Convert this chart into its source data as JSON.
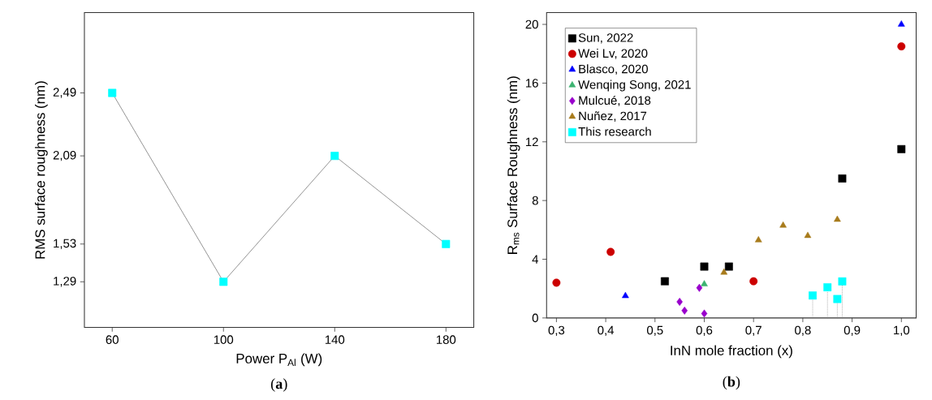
{
  "chart_data": [
    {
      "type": "line",
      "xlabel": "Power P$_{Al}$ (W)",
      "ylabel": "RMS surface roughness (nm)",
      "annotations": [
        "(**a**)"
      ],
      "x": [
        60,
        100,
        140,
        180
      ],
      "values": [
        2.49,
        1.29,
        2.09,
        1.53
      ],
      "color": "#00ffff",
      "marker": "square",
      "xlim": [
        50,
        190
      ],
      "ylim": [
        1.0,
        3.0
      ],
      "xticks": [
        60,
        100,
        140,
        180
      ],
      "yticks": [
        {
          "value": 1.29,
          "label": "1,29"
        },
        {
          "value": 1.53,
          "label": "1,53"
        },
        {
          "value": 2.09,
          "label": "2,09"
        },
        {
          "value": 2.49,
          "label": "2,49"
        }
      ]
    },
    {
      "type": "scatter",
      "xlabel": "InN mole fraction (x)",
      "ylabel": "R$_{ms}$ Surface Roughness (nm)",
      "annotations": [
        "(**b**)"
      ],
      "legend": "top left",
      "xlim": [
        0.28,
        1.03
      ],
      "ylim": [
        0,
        20.8
      ],
      "xticks": [
        {
          "value": 0.3,
          "label": "0,3"
        },
        {
          "value": 0.4,
          "label": "0,4"
        },
        {
          "value": 0.5,
          "label": "0,5"
        },
        {
          "value": 0.6,
          "label": "0,6"
        },
        {
          "value": 0.7,
          "label": "0,7"
        },
        {
          "value": 0.8,
          "label": "0,8"
        },
        {
          "value": 0.9,
          "label": "0,9"
        },
        {
          "value": 1.0,
          "label": "1,0"
        }
      ],
      "yticks": [
        0,
        4,
        8,
        12,
        16,
        20
      ],
      "series": [
        {
          "name": "Sun, 2022",
          "color": "#000000",
          "marker": "square",
          "x": [
            0.52,
            0.6,
            0.65,
            0.88,
            1.0
          ],
          "values": [
            2.5,
            3.5,
            3.5,
            9.5,
            11.5
          ]
        },
        {
          "name": "Wei Lv, 2020",
          "color": "#cc0000",
          "marker": "circle",
          "x": [
            0.3,
            0.41,
            0.7,
            1.0
          ],
          "values": [
            2.4,
            4.5,
            2.5,
            18.5
          ]
        },
        {
          "name": "Blasco, 2020",
          "color": "#0000ff",
          "marker": "triangle",
          "x": [
            0.44,
            1.0
          ],
          "values": [
            1.5,
            20
          ]
        },
        {
          "name": "Wenqing Song, 2021",
          "color": "#3cb371",
          "marker": "triangle",
          "x": [
            0.6
          ],
          "values": [
            2.3
          ]
        },
        {
          "name": "Mulcué, 2018",
          "color": "#9900cc",
          "marker": "diamond",
          "x": [
            0.55,
            0.56,
            0.59,
            0.6
          ],
          "values": [
            1.1,
            0.5,
            2.05,
            0.3
          ]
        },
        {
          "name": "Nuñez, 2017",
          "color": "#a87b1c",
          "marker": "triangle",
          "x": [
            0.64,
            0.71,
            0.76,
            0.81,
            0.87
          ],
          "values": [
            3.1,
            5.3,
            6.3,
            5.6,
            6.7
          ]
        },
        {
          "name": "This research",
          "color": "#00ffff",
          "marker": "square",
          "type": "lollipop",
          "line_style": "dotted",
          "x": [
            0.82,
            0.85,
            0.87,
            0.88
          ],
          "values": [
            1.53,
            2.09,
            1.29,
            2.49
          ]
        }
      ]
    }
  ]
}
